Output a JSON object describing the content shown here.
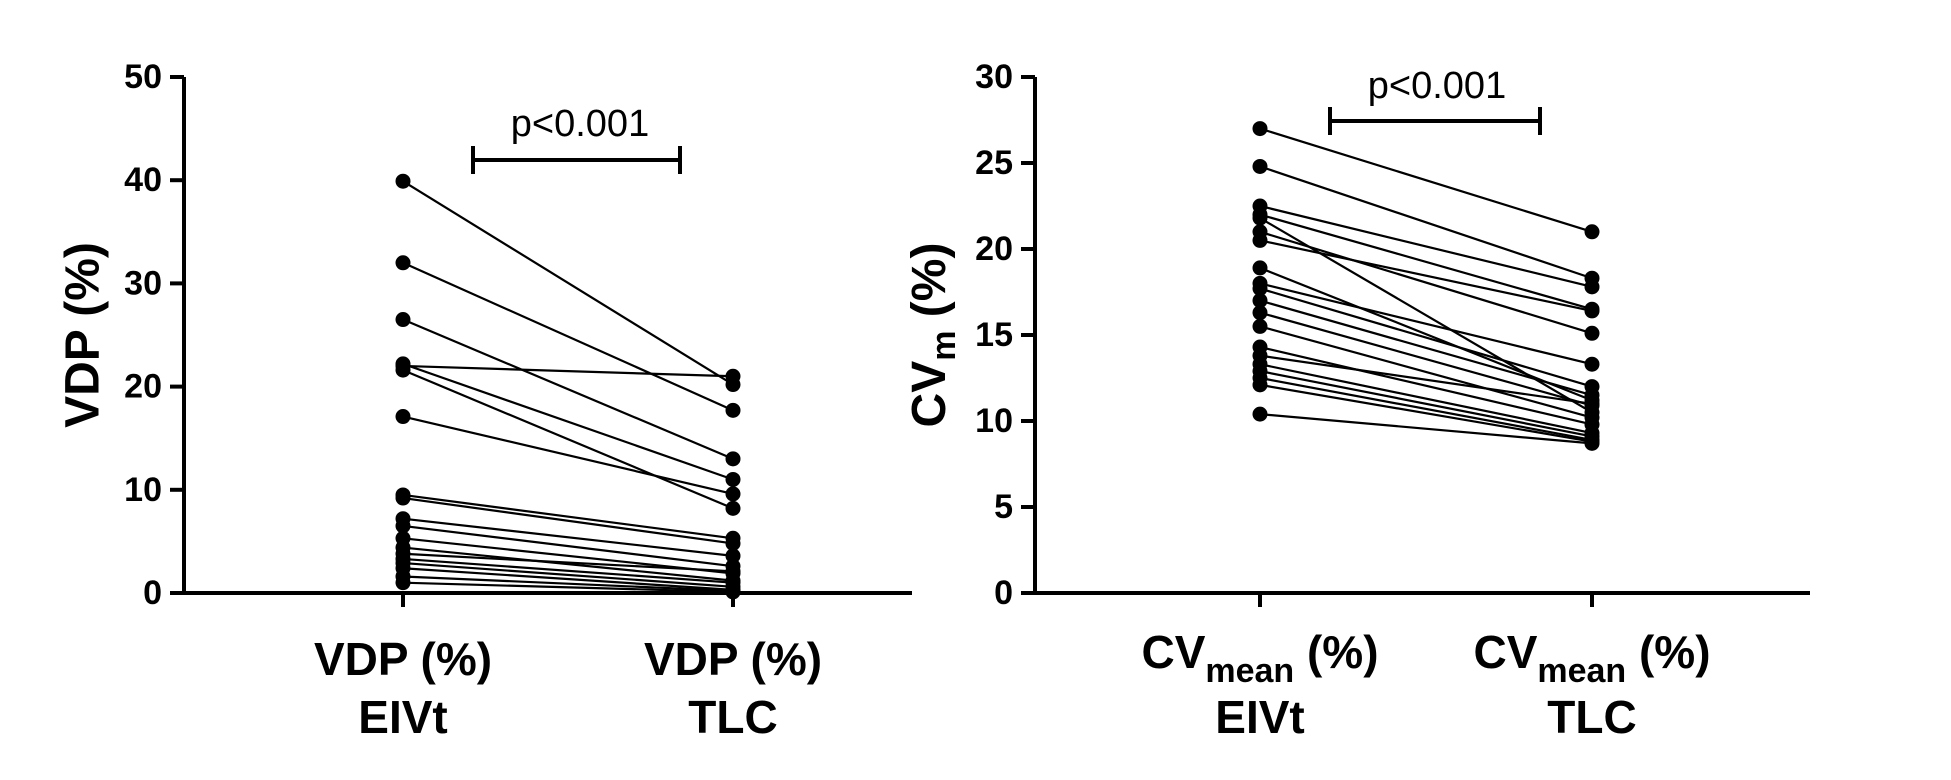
{
  "chart_data": [
    {
      "type": "line",
      "subtype": "paired-dot-plot",
      "ylabel": "VDP (%)",
      "ylim": [
        0,
        50
      ],
      "yticks": [
        "0",
        "10",
        "20",
        "30",
        "40",
        "50"
      ],
      "ytick_values": [
        0,
        10,
        20,
        30,
        40,
        50
      ],
      "categories": [
        {
          "main": "VDP (%)",
          "line2": "EIVt"
        },
        {
          "main": "VDP (%)",
          "line2": "TLC"
        }
      ],
      "annotation": "p<0.001",
      "pairs": [
        [
          39.9,
          20.2
        ],
        [
          32.0,
          17.7
        ],
        [
          26.5,
          13.0
        ],
        [
          22.2,
          11.0
        ],
        [
          21.6,
          8.2
        ],
        [
          17.1,
          9.6
        ],
        [
          9.5,
          5.3
        ],
        [
          9.2,
          4.8
        ],
        [
          7.2,
          3.6
        ],
        [
          6.5,
          2.6
        ],
        [
          5.3,
          1.9
        ],
        [
          4.4,
          1.2
        ],
        [
          3.8,
          2.1
        ],
        [
          3.3,
          1.0
        ],
        [
          2.9,
          0.6
        ],
        [
          2.4,
          0.3
        ],
        [
          1.6,
          0.2
        ],
        [
          1.0,
          0.1
        ],
        [
          22.0,
          21.0
        ]
      ]
    },
    {
      "type": "line",
      "subtype": "paired-dot-plot",
      "ylabel": {
        "main": "CV",
        "sub": "m",
        "suffix": " (%)"
      },
      "ylim": [
        0,
        30
      ],
      "yticks": [
        "0",
        "5",
        "10",
        "15",
        "20",
        "25",
        "30"
      ],
      "ytick_values": [
        0,
        5,
        10,
        15,
        20,
        25,
        30
      ],
      "categories": [
        {
          "main": "CV",
          "sub": "mean",
          "suffix": " (%)",
          "line2": "EIVt"
        },
        {
          "main": "CV",
          "sub": "mean",
          "suffix": " (%)",
          "line2": "TLC"
        }
      ],
      "annotation": "p<0.001",
      "pairs": [
        [
          27.0,
          21.0
        ],
        [
          24.8,
          18.3
        ],
        [
          22.5,
          17.8
        ],
        [
          22.0,
          16.5
        ],
        [
          21.8,
          10.5
        ],
        [
          21.0,
          15.1
        ],
        [
          20.5,
          16.4
        ],
        [
          18.9,
          11.2
        ],
        [
          18.0,
          13.3
        ],
        [
          17.7,
          12.0
        ],
        [
          17.0,
          11.5
        ],
        [
          16.3,
          10.9
        ],
        [
          15.5,
          10.2
        ],
        [
          14.3,
          9.8
        ],
        [
          13.8,
          11.0
        ],
        [
          13.3,
          9.3
        ],
        [
          12.9,
          9.1
        ],
        [
          12.5,
          8.9
        ],
        [
          12.1,
          8.8
        ],
        [
          10.4,
          8.7
        ]
      ]
    }
  ]
}
